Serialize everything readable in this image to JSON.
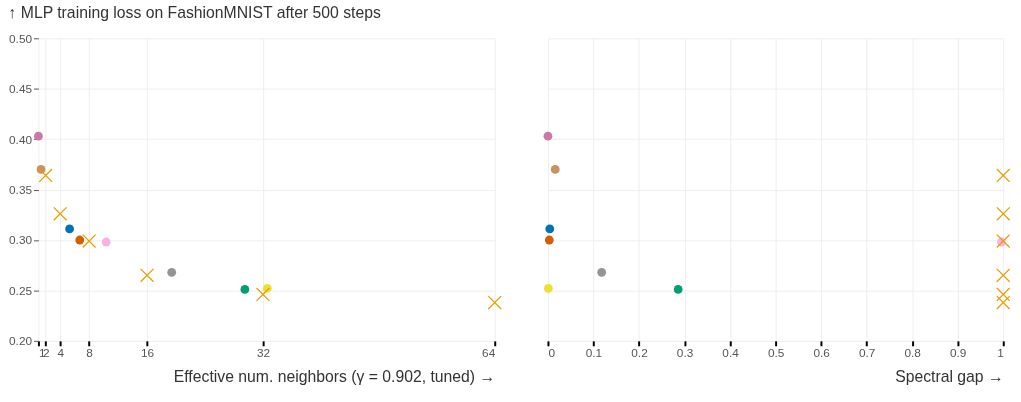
{
  "chart_data": [
    {
      "type": "scatter",
      "title": "↑ MLP training loss on FashionMNIST after 500 steps",
      "xlabel": "Effective num. neighbors (γ = 0.902, tuned) →",
      "xlim": [
        1,
        64
      ],
      "xticks": [
        1,
        2,
        4,
        8,
        16,
        32,
        64
      ],
      "ylim": [
        0.2,
        0.5
      ],
      "yticks": [
        {
          "value": 0.2,
          "label": "0.20"
        },
        0.25,
        {
          "value": 0.3,
          "label": "0.30"
        },
        0.35,
        {
          "value": 0.4,
          "label": "0.40"
        },
        0.45,
        {
          "value": 0.5,
          "label": "0.50"
        }
      ],
      "grid": true,
      "series": [
        {
          "type": "scatter",
          "marker": "circle",
          "x": [
            1.0,
            1.36,
            5.3,
            6.7,
            10.35,
            19.4,
            29.5,
            32.6
          ],
          "values": [
            0.403,
            0.37,
            0.311,
            0.3,
            0.298,
            0.268,
            0.251,
            0.252
          ],
          "colors": [
            "#cc79a7",
            "#ca9161",
            "#0173b2",
            "#d55e00",
            "#fbafe4",
            "#949494",
            "#029e73",
            "#ece133"
          ]
        },
        {
          "type": "scatter",
          "marker": "cross",
          "color": "#e69f00",
          "x": [
            2,
            4,
            8,
            16,
            32,
            64
          ],
          "values": [
            0.364,
            0.326,
            0.299,
            0.265,
            0.246,
            0.238
          ]
        }
      ]
    },
    {
      "type": "scatter",
      "xlabel": "Spectral gap →",
      "xlim": [
        0,
        1
      ],
      "xticks": [
        0,
        0.1,
        0.2,
        0.3,
        0.4,
        0.5,
        0.6,
        0.7,
        0.8,
        0.9,
        1
      ],
      "ylim": [
        0.2,
        0.5
      ],
      "yticks": [
        0.2,
        0.25,
        0.3,
        0.35,
        0.4,
        0.45,
        0.5
      ],
      "grid": true,
      "tick_labels": "x",
      "series": [
        {
          "type": "scatter",
          "marker": "circle",
          "x": [
            0.0,
            0.016,
            0.004,
            0.003,
            0.996,
            0.118,
            0.286,
            0.001
          ],
          "values": [
            0.403,
            0.37,
            0.311,
            0.3,
            0.298,
            0.268,
            0.251,
            0.252
          ],
          "colors": [
            "#cc79a7",
            "#ca9161",
            "#0173b2",
            "#d55e00",
            "#fbafe4",
            "#949494",
            "#029e73",
            "#ece133"
          ]
        },
        {
          "type": "scatter",
          "marker": "cross",
          "color": "#e69f00",
          "x": [
            1,
            1,
            1,
            1,
            1,
            1
          ],
          "values": [
            0.364,
            0.326,
            0.299,
            0.265,
            0.246,
            0.238
          ]
        }
      ]
    }
  ]
}
